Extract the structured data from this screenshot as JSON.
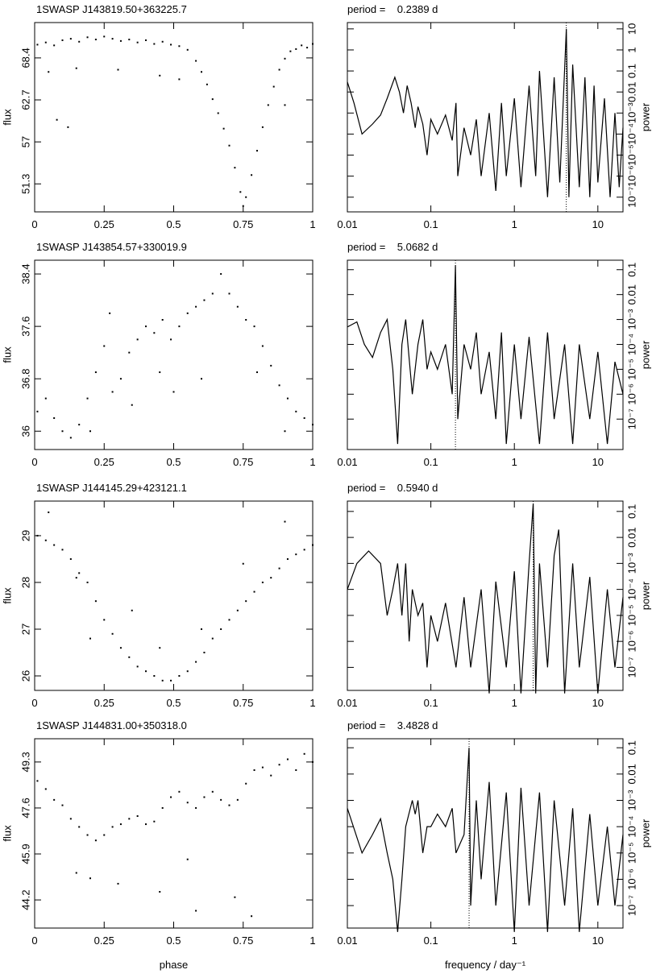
{
  "chart_data": [
    {
      "type": "scatter",
      "title": "1SWASP J143819.50+363225.7",
      "ylabel": "flux",
      "color": "#000000",
      "x": [
        0.01,
        0.04,
        0.07,
        0.1,
        0.13,
        0.16,
        0.19,
        0.22,
        0.25,
        0.28,
        0.31,
        0.34,
        0.37,
        0.4,
        0.43,
        0.46,
        0.49,
        0.52,
        0.55,
        0.58,
        0.6,
        0.62,
        0.64,
        0.66,
        0.68,
        0.7,
        0.72,
        0.74,
        0.75,
        0.76,
        0.78,
        0.8,
        0.82,
        0.84,
        0.86,
        0.88,
        0.9,
        0.92,
        0.94,
        0.96,
        0.98,
        1.0,
        0.05,
        0.15,
        0.3,
        0.45,
        0.08,
        0.12,
        0.52,
        0.9
      ],
      "values": [
        70.2,
        70.5,
        70.1,
        70.8,
        71.0,
        70.6,
        71.2,
        70.9,
        71.3,
        71.0,
        70.7,
        70.9,
        70.5,
        70.8,
        70.3,
        70.6,
        70.2,
        70.0,
        69.5,
        68.0,
        66.5,
        64.8,
        62.8,
        60.9,
        58.8,
        56.5,
        53.5,
        50.2,
        48.3,
        49.5,
        52.5,
        55.8,
        59.0,
        62.0,
        64.5,
        66.8,
        68.3,
        69.3,
        69.6,
        70.1,
        69.8,
        70.3,
        66.5,
        67.0,
        66.8,
        66.0,
        60.0,
        59.0,
        65.5,
        62.0
      ],
      "xlim": [
        0,
        1
      ],
      "xticks": [
        0,
        0.25,
        0.5,
        0.75,
        1
      ],
      "ylim": [
        47.5,
        73.2
      ],
      "yticks": [
        51.3,
        57,
        62.7,
        68.4
      ]
    },
    {
      "type": "line",
      "title": "period =    0.2389 d",
      "ylabel": "power",
      "color": "#000000",
      "xlog": true,
      "ylog": true,
      "yaxis": "right",
      "vline_x": 4.186,
      "x": [
        0.01,
        0.012,
        0.015,
        0.02,
        0.025,
        0.03,
        0.037,
        0.042,
        0.047,
        0.052,
        0.058,
        0.065,
        0.07,
        0.08,
        0.09,
        0.1,
        0.12,
        0.15,
        0.18,
        0.2,
        0.21,
        0.25,
        0.3,
        0.35,
        0.4,
        0.5,
        0.6,
        0.7,
        0.8,
        1,
        1.2,
        1.5,
        1.8,
        2,
        2.5,
        3,
        3.5,
        4.19,
        4.5,
        5,
        6,
        7,
        8,
        9,
        10,
        12,
        14,
        16,
        18,
        20
      ],
      "values": [
        0.03,
        0.003,
        0.0001,
        0.0003,
        0.0008,
        0.005,
        0.05,
        0.01,
        0.001,
        0.02,
        0.003,
        0.0002,
        0.002,
        0.0003,
        1e-05,
        0.0005,
        0.0001,
        0.0008,
        5e-05,
        0.003,
        1e-06,
        0.0002,
        1e-05,
        0.0005,
        1e-06,
        0.001,
        2e-07,
        0.003,
        1e-06,
        0.005,
        3e-07,
        0.02,
        1e-06,
        0.1,
        1e-07,
        0.05,
        5e-07,
        10,
        1e-07,
        0.2,
        3e-07,
        0.05,
        1e-07,
        0.02,
        5e-07,
        0.005,
        1e-07,
        0.001,
        3e-07,
        0.0002
      ],
      "xlim": [
        0.01,
        20
      ],
      "xticks": [
        0.01,
        0.1,
        1,
        10
      ],
      "ylim": [
        2e-08,
        20
      ],
      "yticks": [
        {
          "value": 1e-07,
          "label": "10⁻⁷"
        },
        {
          "value": 1e-06,
          "label": "10⁻⁶"
        },
        {
          "value": 1e-05,
          "label": "10⁻⁵"
        },
        {
          "value": 0.0001,
          "label": "10⁻⁴"
        },
        {
          "value": 0.001,
          "label": "10⁻³"
        },
        0.01,
        0.1,
        1,
        10
      ]
    },
    {
      "type": "scatter",
      "title": "1SWASP J143854.57+330019.9",
      "ylabel": "flux",
      "color": "#000000",
      "x": [
        0.01,
        0.04,
        0.07,
        0.1,
        0.13,
        0.16,
        0.19,
        0.22,
        0.25,
        0.28,
        0.31,
        0.34,
        0.37,
        0.4,
        0.43,
        0.46,
        0.49,
        0.52,
        0.55,
        0.58,
        0.61,
        0.64,
        0.67,
        0.7,
        0.73,
        0.76,
        0.79,
        0.82,
        0.85,
        0.88,
        0.91,
        0.94,
        0.97,
        1.0,
        0.2,
        0.35,
        0.45,
        0.6,
        0.8,
        0.27,
        0.5,
        0.9
      ],
      "values": [
        36.3,
        36.5,
        36.2,
        36.0,
        35.9,
        36.1,
        36.5,
        36.9,
        37.3,
        36.6,
        36.8,
        37.2,
        37.4,
        37.6,
        37.5,
        37.7,
        37.4,
        37.6,
        37.8,
        37.9,
        38.0,
        38.1,
        38.4,
        38.1,
        37.9,
        37.7,
        37.6,
        37.3,
        37.0,
        36.7,
        36.5,
        36.3,
        36.2,
        36.1,
        36.0,
        36.4,
        36.9,
        36.8,
        36.9,
        37.8,
        36.6,
        36.0
      ],
      "xlim": [
        0,
        1
      ],
      "xticks": [
        0,
        0.25,
        0.5,
        0.75,
        1
      ],
      "ylim": [
        35.72,
        38.61
      ],
      "yticks": [
        36,
        36.8,
        37.6,
        38.4
      ]
    },
    {
      "type": "line",
      "title": "period =    5.0682 d",
      "ylabel": "power",
      "color": "#000000",
      "xlog": true,
      "ylog": true,
      "yaxis": "right",
      "vline_x": 0.197,
      "x": [
        0.01,
        0.013,
        0.016,
        0.02,
        0.025,
        0.03,
        0.035,
        0.04,
        0.045,
        0.05,
        0.06,
        0.07,
        0.08,
        0.09,
        0.1,
        0.12,
        0.15,
        0.18,
        0.197,
        0.21,
        0.25,
        0.3,
        0.35,
        0.4,
        0.5,
        0.6,
        0.7,
        0.8,
        1,
        1.2,
        1.5,
        2,
        2.5,
        3,
        4,
        5,
        6,
        8,
        10,
        13,
        16,
        20
      ],
      "values": [
        0.0005,
        0.0008,
        0.0001,
        3e-05,
        0.0003,
        0.001,
        1e-05,
        1e-08,
        0.0001,
        0.001,
        1e-06,
        0.0001,
        0.001,
        1e-05,
        5e-05,
        1e-05,
        0.0001,
        1e-06,
        0.15,
        1e-07,
        0.0001,
        1e-05,
        0.0003,
        1e-06,
        5e-05,
        1e-07,
        0.0003,
        1e-08,
        0.0001,
        1e-07,
        0.0002,
        1e-08,
        0.0003,
        1e-07,
        0.0001,
        1e-08,
        0.0001,
        1e-07,
        5e-05,
        1e-08,
        2e-05,
        1e-06
      ],
      "xlim": [
        0.01,
        20
      ],
      "xticks": [
        0.01,
        0.1,
        1,
        10
      ],
      "ylim": [
        6e-09,
        0.24
      ],
      "yticks": [
        {
          "value": 1e-07,
          "label": "10⁻⁷"
        },
        {
          "value": 1e-06,
          "label": "10⁻⁶"
        },
        {
          "value": 1e-05,
          "label": "10⁻⁵"
        },
        {
          "value": 0.0001,
          "label": "10⁻⁴"
        },
        {
          "value": 0.001,
          "label": "10⁻³"
        },
        0.01,
        0.1
      ]
    },
    {
      "type": "scatter",
      "title": "1SWASP J144145.29+423121.1",
      "ylabel": "flux",
      "color": "#000000",
      "x": [
        0.01,
        0.04,
        0.07,
        0.1,
        0.13,
        0.16,
        0.19,
        0.22,
        0.25,
        0.28,
        0.31,
        0.34,
        0.37,
        0.4,
        0.43,
        0.46,
        0.49,
        0.52,
        0.55,
        0.58,
        0.61,
        0.64,
        0.67,
        0.7,
        0.73,
        0.76,
        0.79,
        0.82,
        0.85,
        0.88,
        0.91,
        0.94,
        0.97,
        1.0,
        0.05,
        0.2,
        0.35,
        0.6,
        0.75,
        0.9,
        0.15,
        0.45
      ],
      "values": [
        29.0,
        28.9,
        28.8,
        28.7,
        28.5,
        28.2,
        28.0,
        27.6,
        27.2,
        26.9,
        26.6,
        26.4,
        26.2,
        26.1,
        26.0,
        25.9,
        25.9,
        26.0,
        26.1,
        26.3,
        26.5,
        26.8,
        27.0,
        27.2,
        27.4,
        27.6,
        27.8,
        28.0,
        28.1,
        28.3,
        28.5,
        28.6,
        28.7,
        28.8,
        29.5,
        26.8,
        27.4,
        27.0,
        28.4,
        29.3,
        28.1,
        26.6
      ],
      "xlim": [
        0,
        1
      ],
      "xticks": [
        0,
        0.25,
        0.5,
        0.75,
        1
      ],
      "ylim": [
        25.69,
        29.74
      ],
      "yticks": [
        26,
        27,
        28,
        29
      ]
    },
    {
      "type": "line",
      "title": "period =    0.5940 d",
      "ylabel": "power",
      "color": "#000000",
      "xlog": true,
      "ylog": true,
      "yaxis": "right",
      "vline_x": 1.68,
      "x": [
        0.01,
        0.013,
        0.018,
        0.025,
        0.03,
        0.035,
        0.04,
        0.045,
        0.05,
        0.055,
        0.06,
        0.07,
        0.08,
        0.09,
        0.1,
        0.12,
        0.15,
        0.2,
        0.25,
        0.3,
        0.4,
        0.5,
        0.6,
        0.8,
        1,
        1.2,
        1.5,
        1.68,
        1.8,
        2,
        2.5,
        3,
        3.4,
        4,
        5,
        6,
        8,
        10,
        13,
        16,
        20
      ],
      "values": [
        0.0001,
        0.001,
        0.003,
        0.001,
        1e-05,
        0.0001,
        0.001,
        1e-05,
        0.001,
        1e-06,
        0.0001,
        1e-05,
        3e-05,
        1e-07,
        1e-05,
        1e-06,
        3e-05,
        1e-07,
        5e-05,
        1e-07,
        0.0001,
        1e-08,
        0.0002,
        1e-07,
        0.0005,
        1e-08,
        0.001,
        0.2,
        1e-08,
        0.001,
        1e-07,
        0.002,
        0.02,
        1e-08,
        0.001,
        1e-07,
        0.0003,
        1e-08,
        0.0001,
        1e-07,
        5e-05
      ],
      "xlim": [
        0.01,
        20
      ],
      "xticks": [
        0.01,
        0.1,
        1,
        10
      ],
      "ylim": [
        1.3e-08,
        0.25
      ],
      "yticks": [
        {
          "value": 1e-07,
          "label": "10⁻⁷"
        },
        {
          "value": 1e-06,
          "label": "10⁻⁶"
        },
        {
          "value": 1e-05,
          "label": "10⁻⁵"
        },
        {
          "value": 0.0001,
          "label": "10⁻⁴"
        },
        {
          "value": 0.001,
          "label": "10⁻³"
        },
        0.01,
        0.1
      ]
    },
    {
      "type": "scatter",
      "title": "1SWASP J144831.00+350318.0",
      "ylabel": "flux",
      "xlabel": "phase",
      "color": "#000000",
      "x": [
        0.01,
        0.04,
        0.07,
        0.1,
        0.13,
        0.16,
        0.19,
        0.22,
        0.25,
        0.28,
        0.31,
        0.34,
        0.37,
        0.4,
        0.43,
        0.46,
        0.49,
        0.52,
        0.55,
        0.58,
        0.61,
        0.64,
        0.67,
        0.7,
        0.73,
        0.76,
        0.79,
        0.82,
        0.85,
        0.88,
        0.91,
        0.94,
        0.97,
        1.0,
        0.15,
        0.3,
        0.45,
        0.58,
        0.72,
        0.78,
        0.55,
        0.2
      ],
      "values": [
        48.6,
        48.3,
        47.9,
        47.7,
        47.2,
        46.9,
        46.6,
        46.4,
        46.6,
        46.9,
        47.0,
        47.2,
        47.3,
        47.0,
        47.1,
        47.6,
        48.0,
        48.2,
        47.8,
        47.6,
        48.0,
        48.2,
        47.9,
        47.7,
        47.9,
        48.5,
        49.0,
        49.1,
        48.8,
        49.2,
        49.4,
        49.0,
        49.6,
        49.3,
        45.2,
        44.8,
        44.5,
        43.8,
        44.3,
        43.6,
        45.7,
        45.0
      ],
      "xlim": [
        0,
        1
      ],
      "xticks": [
        0,
        0.25,
        0.5,
        0.75,
        1
      ],
      "ylim": [
        43.16,
        50.16
      ],
      "yticks": [
        44.2,
        45.9,
        47.6,
        49.3
      ]
    },
    {
      "type": "line",
      "title": "period =    3.4828 d",
      "ylabel": "power",
      "xlabel": "frequency / day⁻¹",
      "color": "#000000",
      "xlog": true,
      "ylog": true,
      "yaxis": "right",
      "vline_x": 0.287,
      "x": [
        0.01,
        0.015,
        0.02,
        0.025,
        0.03,
        0.035,
        0.04,
        0.045,
        0.05,
        0.06,
        0.065,
        0.07,
        0.08,
        0.09,
        0.1,
        0.12,
        0.15,
        0.18,
        0.2,
        0.25,
        0.287,
        0.3,
        0.35,
        0.4,
        0.5,
        0.6,
        0.8,
        1,
        1.2,
        1.5,
        2,
        2.5,
        3,
        4,
        5,
        6,
        8,
        10,
        13,
        16,
        20
      ],
      "values": [
        0.0005,
        1e-05,
        5e-05,
        0.0002,
        1e-05,
        1e-06,
        1e-08,
        1e-06,
        0.0001,
        0.001,
        0.0003,
        0.001,
        1e-05,
        0.0001,
        0.0001,
        0.0003,
        0.0001,
        0.0005,
        1e-05,
        5e-05,
        0.1,
        1e-07,
        0.001,
        1e-06,
        0.005,
        1e-07,
        0.002,
        1e-08,
        0.003,
        1e-07,
        0.002,
        1e-08,
        0.001,
        1e-07,
        0.0005,
        1e-08,
        0.0003,
        1e-07,
        0.0001,
        1e-07,
        5e-05
      ],
      "xlim": [
        0.01,
        20
      ],
      "xticks": [
        0.01,
        0.1,
        1,
        10
      ],
      "ylim": [
        1.4e-08,
        0.22
      ],
      "yticks": [
        {
          "value": 1e-07,
          "label": "10⁻⁷"
        },
        {
          "value": 1e-06,
          "label": "10⁻⁶"
        },
        {
          "value": 1e-05,
          "label": "10⁻⁵"
        },
        {
          "value": 0.0001,
          "label": "10⁻⁴"
        },
        {
          "value": 0.001,
          "label": "10⁻³"
        },
        0.01,
        0.1
      ]
    }
  ]
}
